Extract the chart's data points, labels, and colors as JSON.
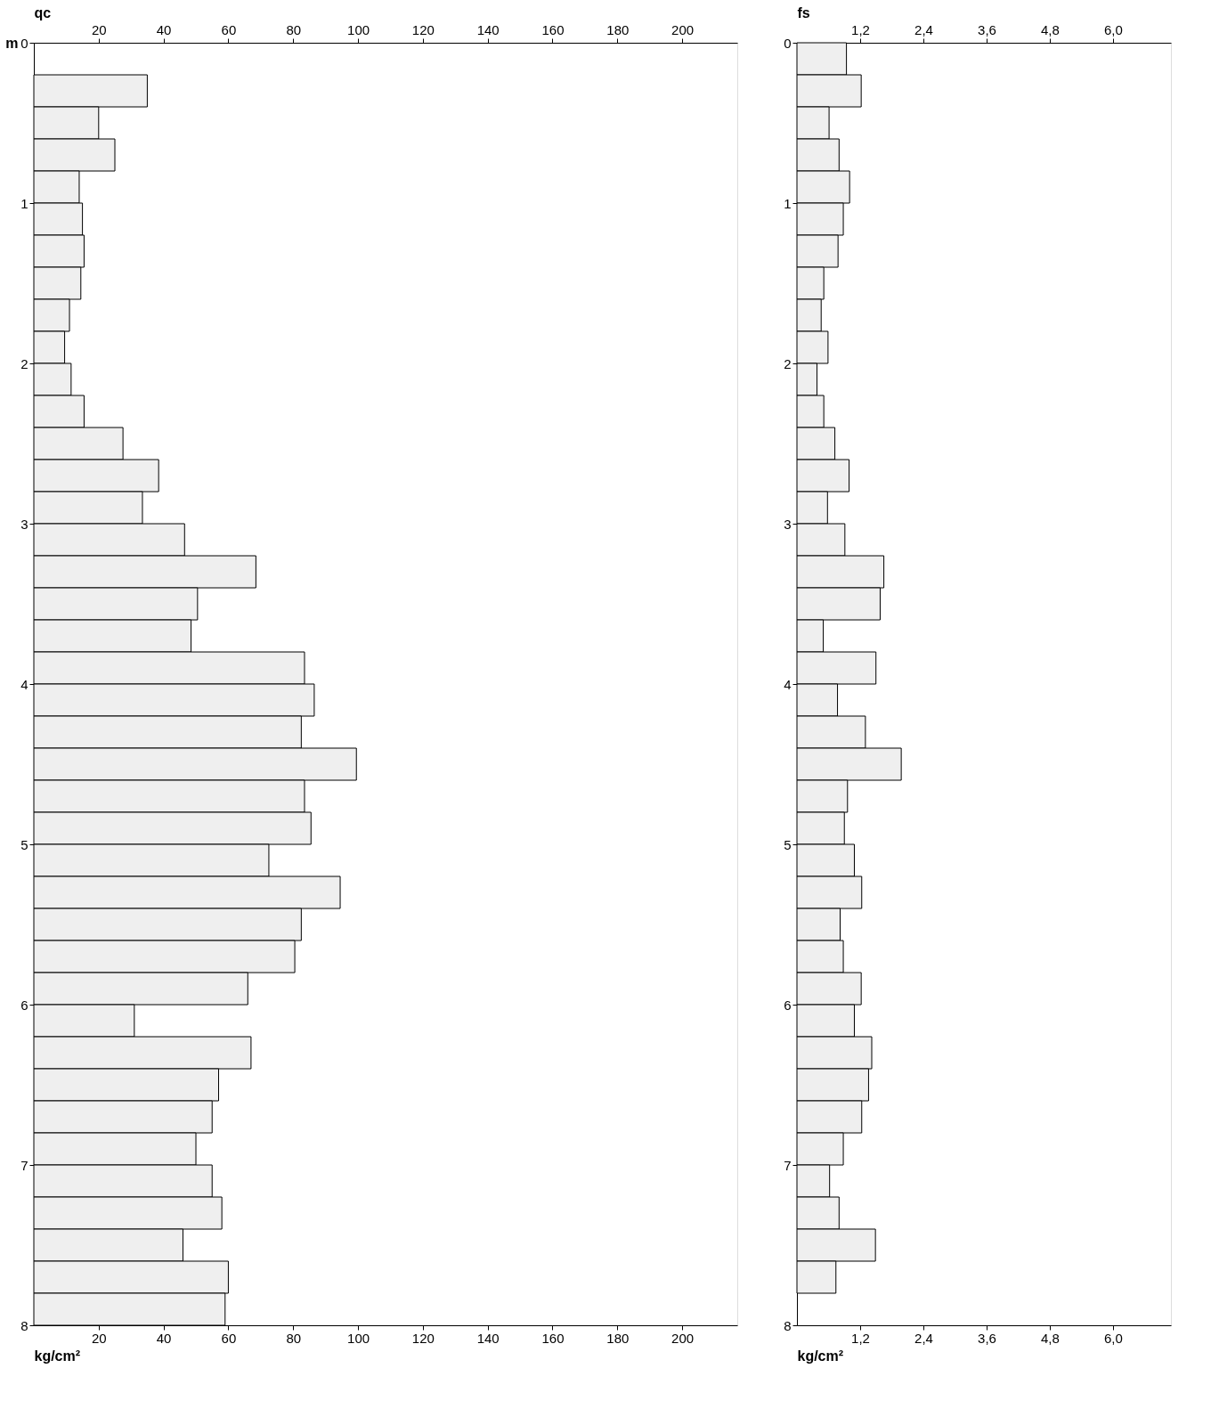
{
  "chart_data": [
    {
      "type": "bar",
      "orientation": "horizontal",
      "x2label": "qc",
      "xlabel": "kg/cm²",
      "ylabel": "m",
      "series": [
        {
          "color": "#efefef",
          "x": [
            0.3,
            0.5,
            0.7,
            0.9,
            1.1,
            1.3,
            1.5,
            1.7,
            1.9,
            2.1,
            2.3,
            2.5,
            2.7,
            2.9,
            3.1,
            3.3,
            3.5,
            3.7,
            3.9,
            4.1,
            4.3,
            4.5,
            4.7,
            4.9,
            5.1,
            5.3,
            5.5,
            5.7,
            5.9,
            6.1,
            6.3,
            6.5,
            6.7,
            6.9,
            7.1,
            7.3,
            7.5,
            7.7,
            7.9
          ],
          "values": [
            35,
            20,
            25,
            14,
            15,
            15.5,
            14.5,
            11,
            9.5,
            11.5,
            15.5,
            27.5,
            38.5,
            33.5,
            46.5,
            68.5,
            50.5,
            48.5,
            83.5,
            86.5,
            82.5,
            99.5,
            83.5,
            85.5,
            72.5,
            94.5,
            82.5,
            80.5,
            66,
            31,
            67,
            57,
            55,
            50,
            55,
            58,
            46,
            60,
            59
          ]
        }
      ],
      "xlim": [
        0,
        217
      ],
      "xticks": [
        20,
        40,
        60,
        80,
        100,
        120,
        140,
        160,
        180,
        200
      ],
      "x2lim": [
        0,
        217
      ],
      "x2ticks": [
        20,
        40,
        60,
        80,
        100,
        120,
        140,
        160,
        180,
        200
      ],
      "ylim": [
        8,
        0
      ],
      "yticks": [
        0,
        1,
        2,
        3,
        4,
        5,
        6,
        7,
        8
      ],
      "grid": false
    },
    {
      "type": "bar",
      "orientation": "horizontal",
      "x2label": "fs",
      "xlabel": "kg/cm²",
      "series": [
        {
          "color": "#efefef",
          "x": [
            0.1,
            0.3,
            0.5,
            0.7,
            0.9,
            1.1,
            1.3,
            1.5,
            1.7,
            1.9,
            2.1,
            2.3,
            2.5,
            2.7,
            2.9,
            3.1,
            3.3,
            3.5,
            3.7,
            3.9,
            4.1,
            4.3,
            4.5,
            4.7,
            4.9,
            5.1,
            5.3,
            5.5,
            5.7,
            5.9,
            6.1,
            6.3,
            6.5,
            6.7,
            6.9,
            7.1,
            7.3,
            7.5,
            7.7
          ],
          "values": [
            0.94,
            1.22,
            0.61,
            0.8,
            1.0,
            0.88,
            0.78,
            0.51,
            0.46,
            0.59,
            0.38,
            0.51,
            0.72,
            0.99,
            0.58,
            0.91,
            1.65,
            1.58,
            0.5,
            1.5,
            0.77,
            1.3,
            1.98,
            0.96,
            0.9,
            1.09,
            1.23,
            0.82,
            0.88,
            1.22,
            1.09,
            1.42,
            1.36,
            1.23,
            0.88,
            0.62,
            0.8,
            1.49,
            0.74
          ]
        }
      ],
      "xlim": [
        0,
        7.1
      ],
      "xticks": [
        {
          "value": 1.2,
          "label": "1,2"
        },
        {
          "value": 2.4,
          "label": "2,4"
        },
        {
          "value": 3.6,
          "label": "3,6"
        },
        {
          "value": 4.8,
          "label": "4,8"
        },
        {
          "value": 6.0,
          "label": "6,0"
        }
      ],
      "x2lim": [
        0,
        7.1
      ],
      "x2ticks": [
        {
          "value": 1.2,
          "label": "1,2"
        },
        {
          "value": 2.4,
          "label": "2,4"
        },
        {
          "value": 3.6,
          "label": "3,6"
        },
        {
          "value": 4.8,
          "label": "4,8"
        },
        {
          "value": 6.0,
          "label": "6,0"
        }
      ],
      "ylim": [
        8,
        0
      ],
      "yticks": [
        0,
        1,
        2,
        3,
        4,
        5,
        6,
        7,
        8
      ],
      "grid": false
    }
  ]
}
